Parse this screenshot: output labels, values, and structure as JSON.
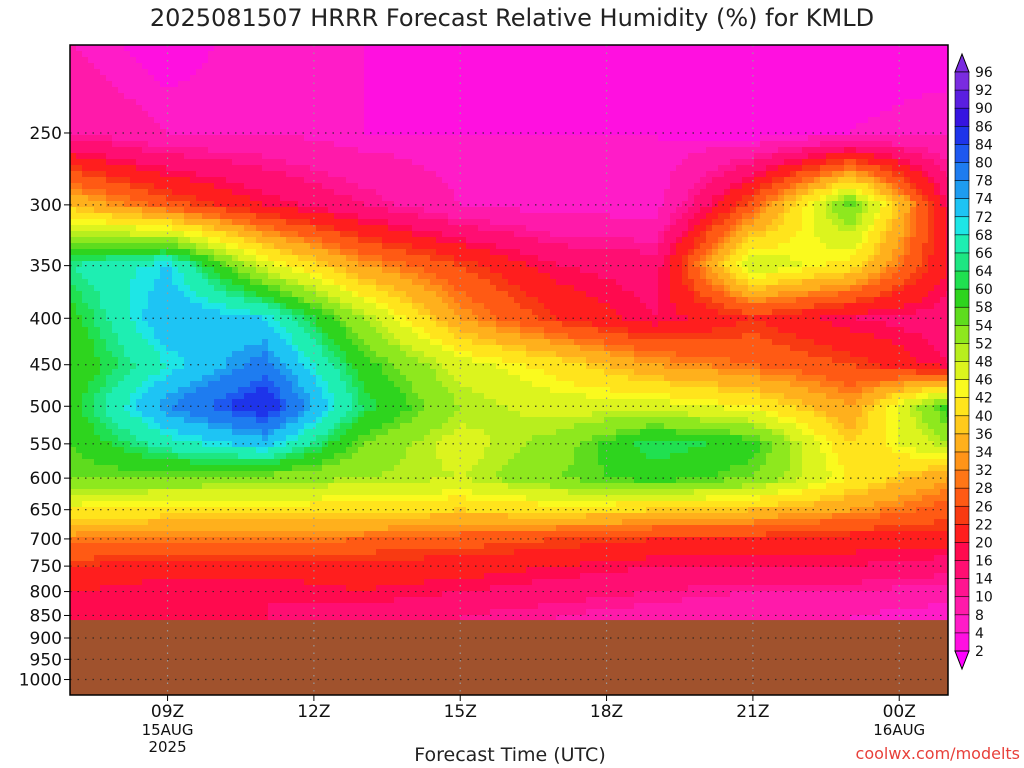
{
  "title": "2025081507 HRRR Forecast Relative Humidity (%) for KMLD",
  "credit": "coolwx.com/modelts",
  "chart_data": {
    "type": "heatmap",
    "title": "2025081507 HRRR Forecast Relative Humidity (%) for KMLD",
    "xlabel": "Forecast Time (UTC)",
    "ylabel": "",
    "x_ticks": [
      "09Z",
      "12Z",
      "15Z",
      "18Z",
      "21Z",
      "00Z"
    ],
    "x_tick_hours": [
      9,
      12,
      15,
      18,
      21,
      24
    ],
    "x_range_hours": [
      7,
      25
    ],
    "date_labels": [
      {
        "hour": 9,
        "lines": [
          "15AUG",
          "2025"
        ]
      },
      {
        "hour": 24,
        "lines": [
          "16AUG"
        ]
      }
    ],
    "y_ticks": [
      250,
      300,
      350,
      400,
      450,
      500,
      550,
      600,
      650,
      700,
      750,
      800,
      850,
      900,
      950,
      1000
    ],
    "y_range_hpa": [
      200,
      1040
    ],
    "y_scale": "log-pressure",
    "ground_pressure_hpa": 860,
    "ground_color": "#a0522d",
    "grid": true,
    "colorbar": {
      "levels": [
        2,
        4,
        8,
        10,
        14,
        16,
        20,
        22,
        26,
        28,
        32,
        34,
        36,
        40,
        42,
        46,
        48,
        52,
        54,
        58,
        60,
        64,
        66,
        68,
        72,
        74,
        78,
        80,
        84,
        86,
        90,
        92,
        96
      ],
      "colors": [
        "#ff00ff",
        "#ff10e0",
        "#ff1cc8",
        "#ff1aaa",
        "#ff1490",
        "#ff0e72",
        "#ff0a4e",
        "#ff1e1e",
        "#f83a12",
        "#ff5a14",
        "#ff7616",
        "#ff9418",
        "#ffb01c",
        "#ffca1c",
        "#ffe41c",
        "#fafa1e",
        "#dcf41e",
        "#b8ee1e",
        "#8ee81e",
        "#5edc1e",
        "#2ed41e",
        "#20e050",
        "#1ee682",
        "#1eeeb2",
        "#1ee6e6",
        "#1ec4f4",
        "#1e9cf0",
        "#1e7cf0",
        "#1e58f0",
        "#1e34ea",
        "#3614e0",
        "#5a1ee0",
        "#7a2ce0"
      ],
      "placement": "right"
    },
    "x_hours": [
      7,
      9,
      11,
      13,
      15,
      17,
      19,
      21,
      23,
      25
    ],
    "pressure_levels": [
      200,
      250,
      300,
      350,
      400,
      450,
      500,
      550,
      600,
      650,
      700,
      750,
      800,
      850
    ],
    "values": [
      [
        10,
        6,
        10,
        8,
        6,
        6,
        6,
        4,
        6,
        6
      ],
      [
        14,
        10,
        10,
        8,
        8,
        8,
        8,
        6,
        8,
        10
      ],
      [
        40,
        30,
        22,
        16,
        10,
        8,
        8,
        30,
        60,
        20
      ],
      [
        68,
        74,
        50,
        36,
        28,
        20,
        18,
        52,
        44,
        22
      ],
      [
        62,
        78,
        74,
        54,
        36,
        26,
        20,
        26,
        20,
        18
      ],
      [
        60,
        72,
        82,
        62,
        50,
        44,
        36,
        32,
        28,
        20
      ],
      [
        62,
        80,
        90,
        66,
        54,
        50,
        50,
        46,
        36,
        62
      ],
      [
        60,
        70,
        76,
        58,
        50,
        56,
        66,
        62,
        42,
        54
      ],
      [
        58,
        58,
        56,
        54,
        52,
        58,
        62,
        58,
        46,
        36
      ],
      [
        46,
        44,
        44,
        44,
        42,
        44,
        42,
        40,
        36,
        30
      ],
      [
        34,
        34,
        34,
        32,
        30,
        28,
        26,
        26,
        24,
        24
      ],
      [
        26,
        24,
        24,
        24,
        24,
        22,
        20,
        20,
        20,
        18
      ],
      [
        22,
        20,
        20,
        22,
        20,
        18,
        16,
        14,
        14,
        12
      ],
      [
        20,
        20,
        20,
        18,
        16,
        14,
        12,
        10,
        10,
        8
      ]
    ]
  }
}
